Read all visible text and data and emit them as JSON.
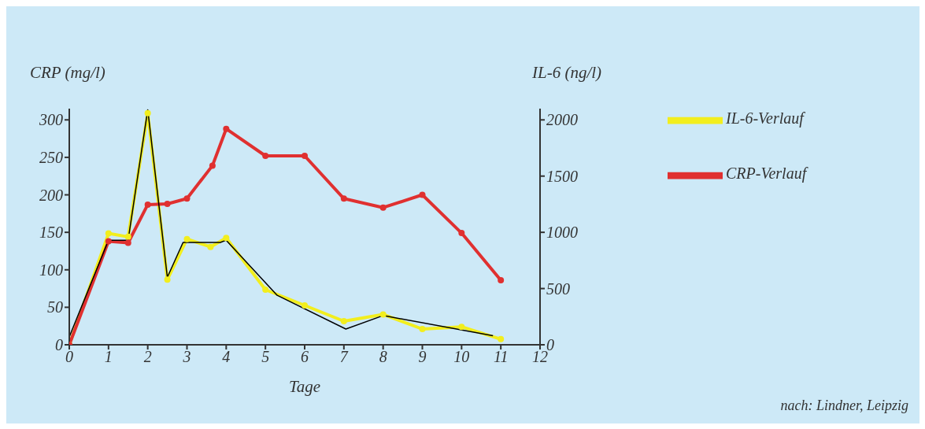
{
  "chart_data": {
    "type": "line",
    "xlabel": "Tage",
    "ylabel": "CRP (mg/l)",
    "y2label": "IL-6 (ng/l)",
    "xlim": [
      0,
      12
    ],
    "xticks": [
      0,
      1,
      2,
      3,
      4,
      5,
      6,
      7,
      8,
      9,
      10,
      11,
      12
    ],
    "ylim": [
      0,
      315
    ],
    "yticks": [
      0,
      50,
      100,
      150,
      200,
      250,
      300
    ],
    "y2lim": [
      0,
      2100
    ],
    "y2ticks": [
      0,
      500,
      1000,
      1500,
      2000
    ],
    "series": [
      {
        "name": "IL-6-Verlauf",
        "color": "#f2ee1e",
        "axis": "y2",
        "x": [
          0,
          1,
          1.5,
          2,
          2.5,
          3,
          3.6,
          4,
          5,
          6,
          7,
          8,
          9,
          10,
          11
        ],
        "values": [
          0,
          990,
          960,
          2060,
          580,
          940,
          870,
          950,
          490,
          350,
          210,
          270,
          140,
          160,
          50
        ]
      },
      {
        "color": "#000000",
        "axis": "y2",
        "marker": "none",
        "x": [
          0,
          1,
          1.5,
          2,
          2.5,
          2.9,
          3.85,
          4,
          5.3,
          7.05,
          8,
          10.8
        ],
        "values": [
          70,
          930,
          930,
          2090,
          600,
          910,
          910,
          930,
          440,
          140,
          260,
          80
        ]
      },
      {
        "name": "CRP-Verlauf",
        "color": "#e03030",
        "x": [
          0,
          1,
          1.5,
          2,
          2.5,
          3,
          3.65,
          4,
          5,
          6,
          7,
          8,
          9,
          10,
          11
        ],
        "values": [
          0,
          138,
          136,
          187,
          188,
          195,
          239,
          288,
          252,
          252,
          195,
          183,
          200,
          149,
          86
        ]
      }
    ],
    "marker": "circle",
    "grid": false,
    "legend": "right",
    "annotations": [
      "nach: Lindner, Leipzig"
    ]
  }
}
